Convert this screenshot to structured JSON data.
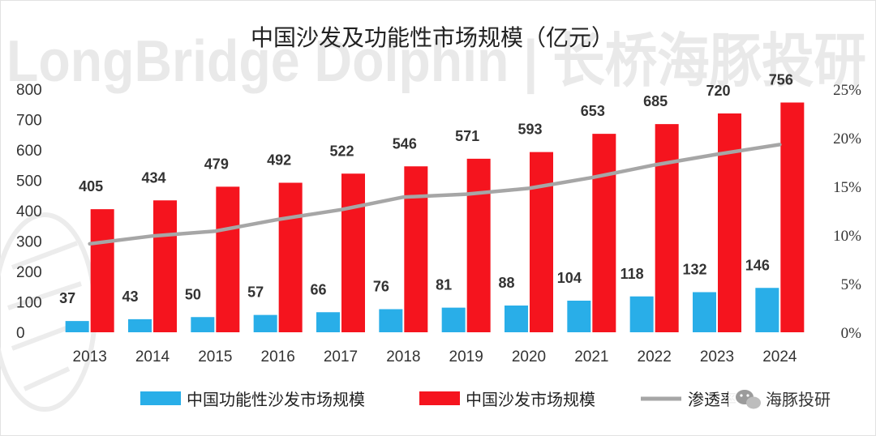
{
  "watermark": "LongBridge Dolphin | 长桥海豚投研",
  "credit": {
    "text": "海豚投研",
    "icon": "wechat-icon"
  },
  "colors": {
    "functional": "#29AEE8",
    "sofa": "#F5141E",
    "penetration": "#A6A6A6"
  },
  "chart_data": {
    "type": "bar",
    "title": "中国沙发及功能性市场规模（亿元）",
    "categories": [
      "2013",
      "2014",
      "2015",
      "2016",
      "2017",
      "2018",
      "2019",
      "2020",
      "2021",
      "2022",
      "2023",
      "2024"
    ],
    "ylim": [
      0,
      800
    ],
    "yticks": [
      "0",
      "100",
      "200",
      "300",
      "400",
      "500",
      "600",
      "700",
      "800"
    ],
    "y2lim": [
      0,
      25
    ],
    "y2ticks": [
      "0%",
      "5%",
      "10%",
      "15%",
      "20%",
      "25%"
    ],
    "series": [
      {
        "name": "中国功能性沙发市场规模",
        "type": "bar",
        "axis": "left",
        "values": [
          37,
          43,
          50,
          57,
          66,
          76,
          81,
          88,
          104,
          118,
          132,
          146
        ]
      },
      {
        "name": "中国沙发市场规模",
        "type": "bar",
        "axis": "left",
        "values": [
          405,
          434,
          479,
          492,
          522,
          546,
          571,
          593,
          653,
          685,
          720,
          756
        ]
      },
      {
        "name": "渗透率",
        "type": "line",
        "axis": "right",
        "values": [
          9.1,
          9.9,
          10.4,
          11.6,
          12.6,
          13.9,
          14.2,
          14.8,
          15.9,
          17.2,
          18.3,
          19.3
        ]
      }
    ],
    "legend": "bottom",
    "grid": false
  }
}
